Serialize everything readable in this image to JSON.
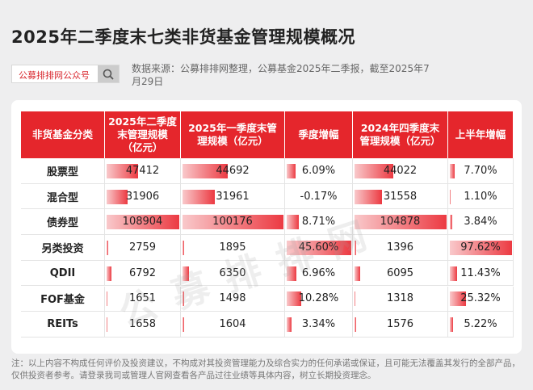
{
  "header": {
    "title": "2025年二季度末七类非货基金管理规模概况",
    "search_label": "公募排排网公众号",
    "source": "数据来源：公募排排网整理，公募基金2025年二季报，截至2025年7月29日"
  },
  "table": {
    "columns": [
      "非货基金分类",
      "2025年二季度末管理规模（亿元）",
      "2025年一季度末管理规模（亿元）",
      "季度增幅",
      "2024年四季度末管理规模（亿元）",
      "上半年增幅"
    ],
    "rows": [
      [
        "股票型",
        "47412",
        "44692",
        "6.09%",
        "44022",
        "7.70%"
      ],
      [
        "混合型",
        "31906",
        "31961",
        "-0.17%",
        "31558",
        "1.10%"
      ],
      [
        "债券型",
        "108904",
        "100176",
        "8.71%",
        "104878",
        "3.84%"
      ],
      [
        "另类投资",
        "2759",
        "1895",
        "45.60%",
        "1396",
        "97.62%"
      ],
      [
        "QDII",
        "6792",
        "6350",
        "6.96%",
        "6095",
        "11.43%"
      ],
      [
        "FOF基金",
        "1651",
        "1498",
        "10.28%",
        "1318",
        "25.32%"
      ],
      [
        "REITs",
        "1658",
        "1604",
        "3.34%",
        "1576",
        "5.22%"
      ]
    ]
  },
  "watermark": "公募排排网",
  "footnote": "注：以上内容不构成任何评价及投资建议，不构成对其投资管理能力及综合实力的任何承诺或保证，且可能无法覆盖其发行的全部产品，仅供投资者参考。请登录我司或管理人官网查看各产品过往业绩等具体内容，树立长期投资理念。"
}
